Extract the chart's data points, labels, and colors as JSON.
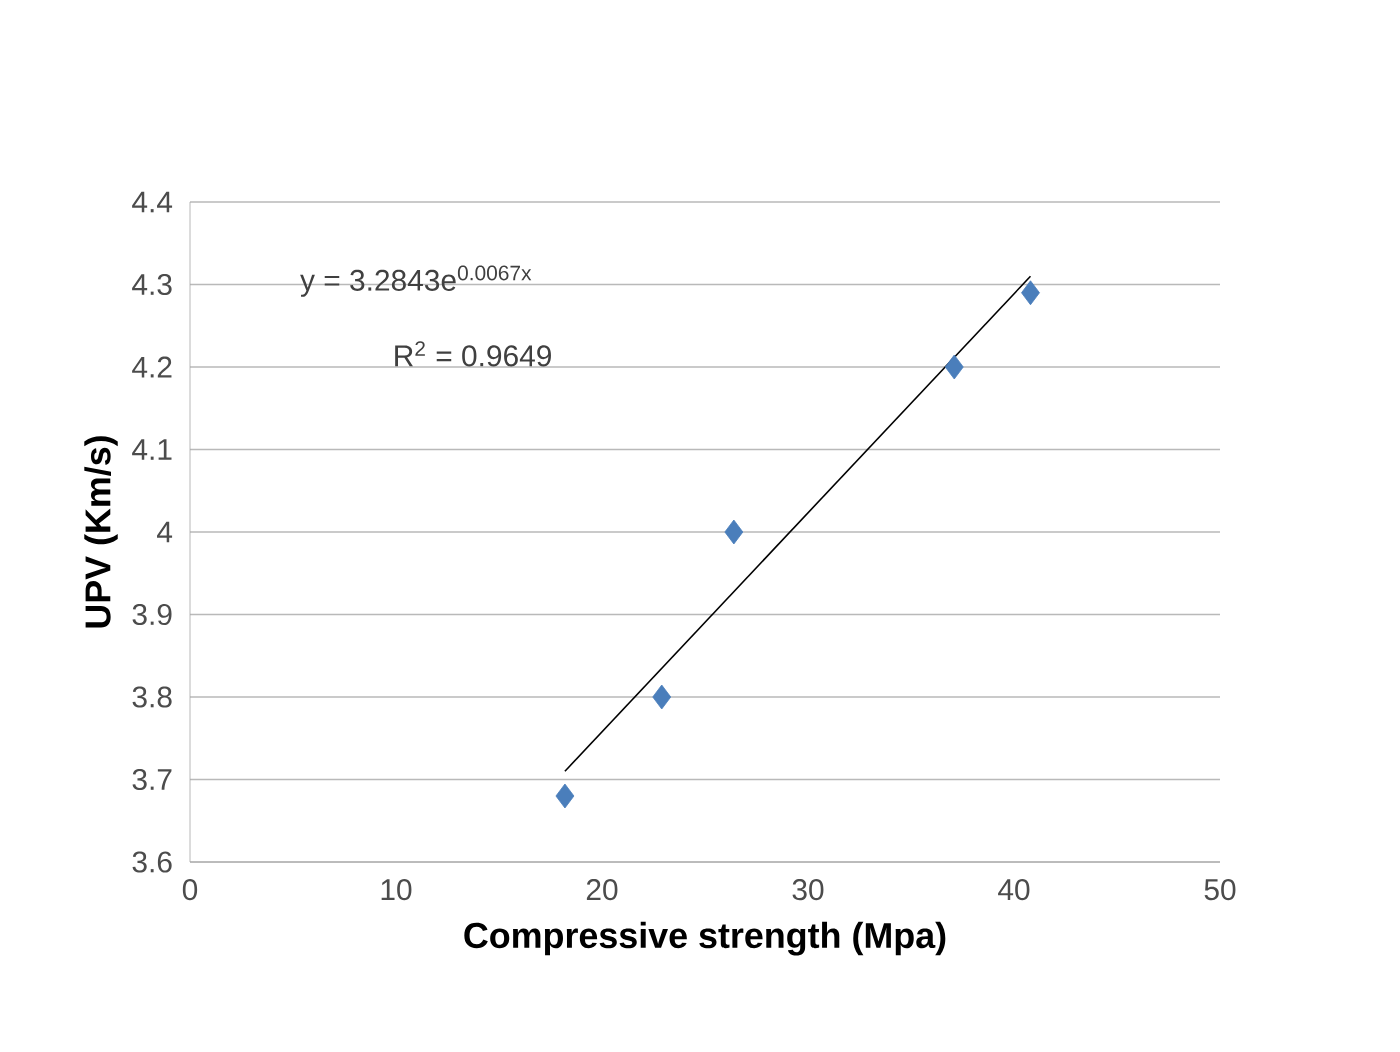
{
  "chart_data": {
    "type": "scatter",
    "xlabel": "Compressive strength (Mpa)",
    "ylabel": "UPV (Km/s)",
    "xlim": [
      0,
      50
    ],
    "xticks": [
      0,
      10,
      20,
      30,
      40,
      50
    ],
    "ylim": [
      3.6,
      4.4
    ],
    "yticks": [
      3.6,
      3.7,
      3.8,
      3.9,
      4,
      4.1,
      4.2,
      4.3,
      4.4
    ],
    "grid": "y",
    "series": [
      {
        "color": "#4a7ebb",
        "marker": "diamond",
        "x": [
          18.2,
          22.9,
          26.4,
          37.1,
          40.8
        ],
        "values": [
          3.68,
          3.8,
          4.0,
          4.2,
          4.29
        ]
      },
      {
        "type": "line",
        "color": "#000000",
        "marker": "none",
        "line_style": "solid",
        "x": [
          18.2,
          40.8
        ],
        "values": [
          3.71,
          4.31
        ]
      }
    ],
    "annotations": [
      "y = 3.2843e$^{0.0067x}$",
      "R$^{2}$ = 0.9649"
    ]
  }
}
